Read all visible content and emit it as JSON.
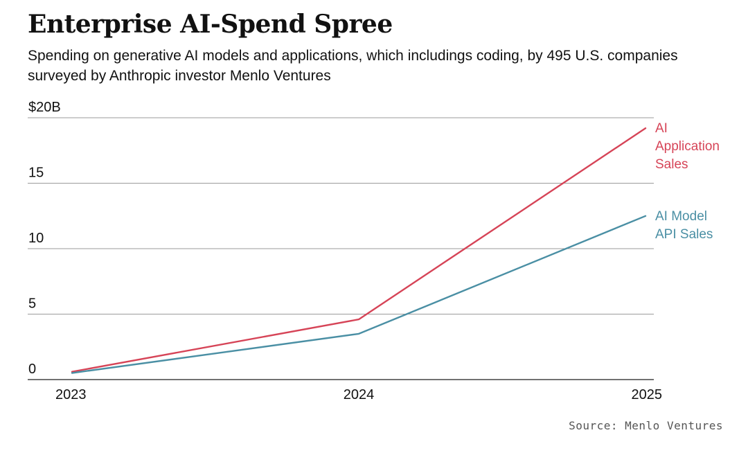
{
  "chart_data": {
    "type": "line",
    "title": "Enterprise AI-Spend Spree",
    "subtitle": "Spending on generative AI models and applications, which includings coding, by 495 U.S. companies surveyed by Anthropic investor Menlo Ventures",
    "source": "Source: Menlo Ventures",
    "x": [
      "2023",
      "2024",
      "2025"
    ],
    "ylim": [
      0,
      20
    ],
    "yticks": [
      0,
      5,
      10,
      15,
      20
    ],
    "ytick_labels": [
      "0",
      "5",
      "10",
      "15",
      "$20B"
    ],
    "grid": true,
    "legend_placement": "right, inline labels at line ends",
    "series": [
      {
        "name": "AI Application Sales",
        "label_lines": [
          "AI",
          "Application",
          "Sales"
        ],
        "color": "#d64457",
        "values": [
          0.6,
          4.6,
          19.2
        ]
      },
      {
        "name": "AI Model API Sales",
        "label_lines": [
          "AI Model",
          "API Sales"
        ],
        "color": "#4a8fa4",
        "values": [
          0.5,
          3.5,
          12.5
        ]
      }
    ]
  }
}
